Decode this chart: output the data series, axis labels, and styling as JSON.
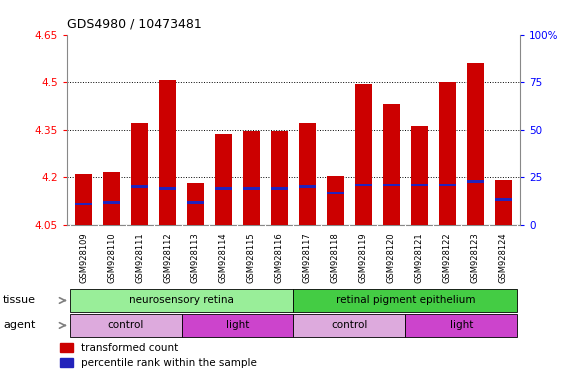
{
  "title": "GDS4980 / 10473481",
  "samples": [
    "GSM928109",
    "GSM928110",
    "GSM928111",
    "GSM928112",
    "GSM928113",
    "GSM928114",
    "GSM928115",
    "GSM928116",
    "GSM928117",
    "GSM928118",
    "GSM928119",
    "GSM928120",
    "GSM928121",
    "GSM928122",
    "GSM928123",
    "GSM928124"
  ],
  "red_values": [
    4.21,
    4.215,
    4.37,
    4.505,
    4.18,
    4.335,
    4.345,
    4.345,
    4.37,
    4.205,
    4.495,
    4.43,
    4.36,
    4.5,
    4.56,
    4.19
  ],
  "blue_values": [
    4.115,
    4.12,
    4.17,
    4.165,
    4.12,
    4.165,
    4.165,
    4.165,
    4.17,
    4.15,
    4.175,
    4.175,
    4.175,
    4.175,
    4.185,
    4.13
  ],
  "ylim_left": [
    4.05,
    4.65
  ],
  "ylim_right": [
    0,
    100
  ],
  "yticks_left": [
    4.05,
    4.2,
    4.35,
    4.5,
    4.65
  ],
  "yticks_right": [
    0,
    25,
    50,
    75,
    100
  ],
  "ytick_labels_left": [
    "4.05",
    "4.2",
    "4.35",
    "4.5",
    "4.65"
  ],
  "ytick_labels_right": [
    "0",
    "25",
    "50",
    "75",
    "100%"
  ],
  "bar_color": "#cc0000",
  "blue_color": "#2222bb",
  "bg_color": "#ffffff",
  "sample_bg": "#cccccc",
  "tissue_row": [
    {
      "label": "neurosensory retina",
      "start": 0,
      "end": 8,
      "color": "#99ee99"
    },
    {
      "label": "retinal pigment epithelium",
      "start": 8,
      "end": 16,
      "color": "#44cc44"
    }
  ],
  "agent_row": [
    {
      "label": "control",
      "start": 0,
      "end": 4,
      "color": "#ddaadd"
    },
    {
      "label": "light",
      "start": 4,
      "end": 8,
      "color": "#cc44cc"
    },
    {
      "label": "control",
      "start": 8,
      "end": 12,
      "color": "#ddaadd"
    },
    {
      "label": "light",
      "start": 12,
      "end": 16,
      "color": "#cc44cc"
    }
  ],
  "legend_red": "transformed count",
  "legend_blue": "percentile rank within the sample",
  "label_tissue": "tissue",
  "label_agent": "agent"
}
